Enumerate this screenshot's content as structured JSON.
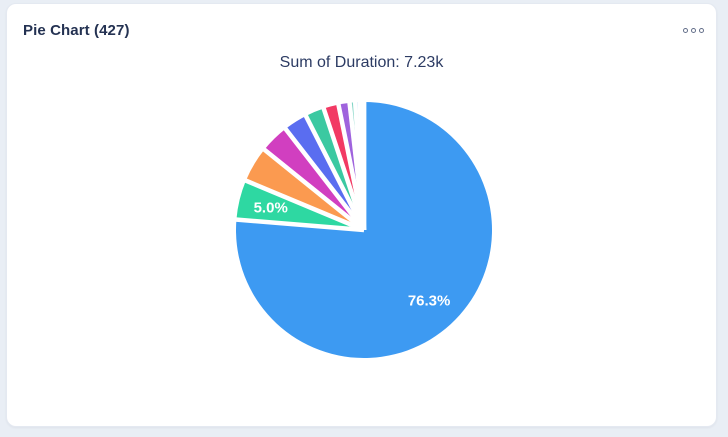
{
  "panel": {
    "header_title": "Pie Chart (427)",
    "menu_icon": "ellipsis-menu-icon",
    "chart_title": "Sum of Duration: 7.23k"
  },
  "colors": {
    "page_bg": "#e9eef5",
    "card_bg": "#ffffff",
    "card_border": "#e4e9f1",
    "header_text": "#243252",
    "title_text": "#2c3b63",
    "slice_separator": "#ffffff",
    "accent_blue": "#3d9af2"
  },
  "chart_data": {
    "type": "pie",
    "title": "Sum of Duration: 7.23k",
    "total_metric": "Sum of Duration",
    "total_value": "7.23k",
    "legend": "none",
    "start_angle_deg": 0,
    "direction": "clockwise",
    "unit": "percent",
    "slices": [
      {
        "value": 76.3,
        "label": "76.3%",
        "label_visible": true,
        "color": "#3d9af2"
      },
      {
        "value": 5.0,
        "label": "5.0%",
        "label_visible": true,
        "color": "#2ed8a2"
      },
      {
        "value": 4.5,
        "label": "4.5%",
        "label_visible": false,
        "color": "#fb9a50"
      },
      {
        "value": 3.7,
        "label": "3.7%",
        "label_visible": false,
        "color": "#d13fc0"
      },
      {
        "value": 3.0,
        "label": "3.0%",
        "label_visible": false,
        "color": "#5a6df0"
      },
      {
        "value": 2.4,
        "label": "2.4%",
        "label_visible": false,
        "color": "#3bc9a1"
      },
      {
        "value": 1.9,
        "label": "1.9%",
        "label_visible": false,
        "color": "#f23a64"
      },
      {
        "value": 1.4,
        "label": "1.4%",
        "label_visible": false,
        "color": "#9f63dd"
      },
      {
        "value": 0.7,
        "label": "0.7%",
        "label_visible": false,
        "color": "#7fd4c4"
      },
      {
        "value": 0.6,
        "label": "0.6%",
        "label_visible": false,
        "color": "#b9dcfa"
      },
      {
        "value": 0.5,
        "label": "0.5%",
        "label_visible": false,
        "color": "#e8f3fd"
      }
    ]
  }
}
